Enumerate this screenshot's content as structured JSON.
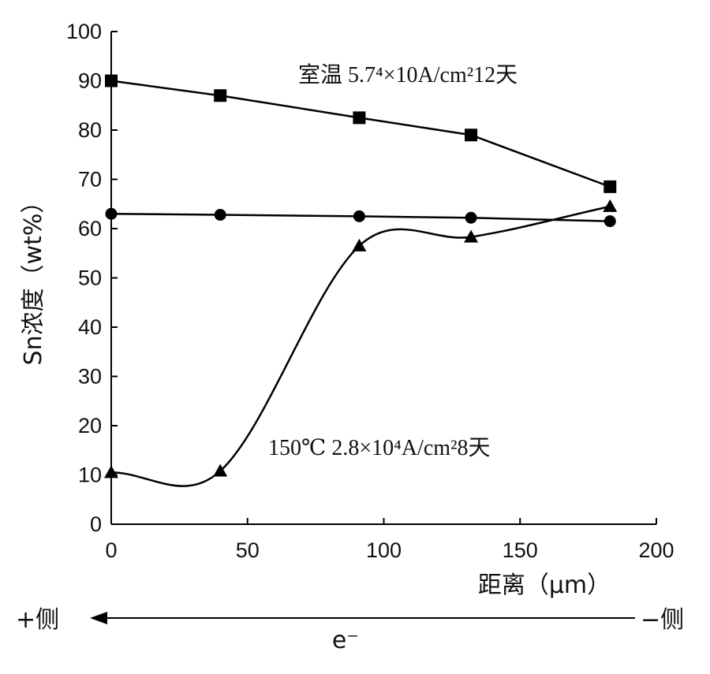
{
  "chart_data": {
    "type": "line",
    "xlabel": "距离（μm）",
    "ylabel": "Sn浓度（wt%）",
    "xlim": [
      0,
      200
    ],
    "ylim": [
      0,
      100
    ],
    "x_ticks": [
      "0",
      "50",
      "100",
      "150",
      "200"
    ],
    "y_ticks": [
      "0",
      "10",
      "20",
      "30",
      "40",
      "50",
      "60",
      "70",
      "80",
      "90",
      "100"
    ],
    "grid": false,
    "series": [
      {
        "marker": "square",
        "curve": "straight",
        "color": "#000000",
        "points": [
          [
            0,
            90
          ],
          [
            40,
            87
          ],
          [
            91,
            82.5
          ],
          [
            132,
            79
          ],
          [
            183,
            68.5
          ]
        ]
      },
      {
        "marker": "circle",
        "curve": "straight",
        "color": "#000000",
        "points": [
          [
            0,
            63
          ],
          [
            40,
            62.8
          ],
          [
            91,
            62.5
          ],
          [
            132,
            62.2
          ],
          [
            183,
            61.5
          ]
        ]
      },
      {
        "marker": "triangle",
        "curve": "smooth",
        "color": "#000000",
        "points": [
          [
            0,
            10.5
          ],
          [
            40,
            10.8
          ],
          [
            91,
            56.5
          ],
          [
            132,
            58.3
          ],
          [
            183,
            64.5
          ]
        ]
      }
    ],
    "annotations": {
      "upper": "室温 5.7⁴×10A/cm²12天",
      "lower": "150℃ 2.8×10⁴A/cm²8天"
    }
  },
  "direction_arrow": {
    "left_label": "+侧",
    "right_label": "−侧",
    "electron_label": "e⁻"
  }
}
